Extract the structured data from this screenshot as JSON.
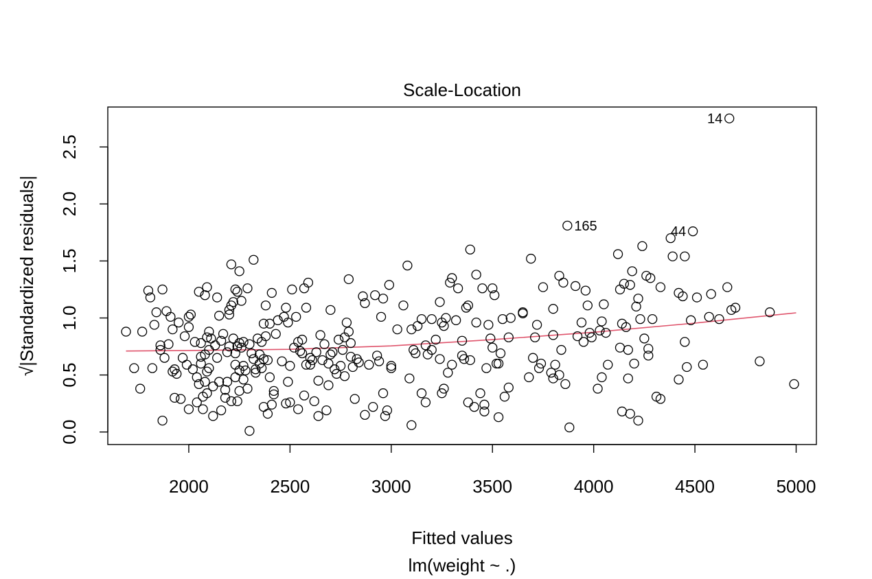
{
  "chart_data": {
    "type": "scatter",
    "title": "Scale-Location",
    "xlabel": "Fitted values",
    "subtitle": "lm(weight ~ .)",
    "ylabel": "√|Standardized residuals|",
    "xlim": [
      1600,
      5100
    ],
    "ylim": [
      -0.11,
      2.85
    ],
    "xticks": [
      2000,
      2500,
      3000,
      3500,
      4000,
      4500,
      5000
    ],
    "yticks": [
      0.0,
      0.5,
      1.0,
      1.5,
      2.0,
      2.5
    ],
    "ytick_labels": [
      "0.0",
      "0.5",
      "1.0",
      "1.5",
      "2.0",
      "2.5"
    ],
    "grid": false,
    "point_color": "#000000",
    "smooth_color": "#DF536B",
    "labeled_points": [
      {
        "label": "14",
        "x": 4670,
        "y": 2.75
      },
      {
        "label": "165",
        "x": 3870,
        "y": 1.81
      },
      {
        "label": "44",
        "x": 4490,
        "y": 1.76
      }
    ],
    "smooth": {
      "x": [
        1690,
        2000,
        2500,
        3000,
        3500,
        4000,
        4500,
        5000
      ],
      "y": [
        0.71,
        0.715,
        0.725,
        0.755,
        0.81,
        0.875,
        0.955,
        1.045
      ]
    },
    "points": [
      [
        1690,
        0.88
      ],
      [
        1730,
        0.56
      ],
      [
        1760,
        0.38
      ],
      [
        1770,
        0.88
      ],
      [
        1800,
        1.24
      ],
      [
        1810,
        1.18
      ],
      [
        1820,
        0.56
      ],
      [
        1830,
        0.94
      ],
      [
        1840,
        1.05
      ],
      [
        1860,
        0.72
      ],
      [
        1860,
        0.76
      ],
      [
        1870,
        0.1
      ],
      [
        1870,
        1.25
      ],
      [
        1880,
        0.65
      ],
      [
        1890,
        1.06
      ],
      [
        1900,
        0.77
      ],
      [
        1910,
        1.01
      ],
      [
        1920,
        0.9
      ],
      [
        1920,
        0.53
      ],
      [
        1930,
        0.55
      ],
      [
        1930,
        0.3
      ],
      [
        1940,
        0.51
      ],
      [
        1950,
        0.96
      ],
      [
        1960,
        0.29
      ],
      [
        1970,
        0.65
      ],
      [
        1980,
        0.84
      ],
      [
        1990,
        0.59
      ],
      [
        2000,
        0.2
      ],
      [
        2000,
        0.92
      ],
      [
        2000,
        1.01
      ],
      [
        2010,
        1.03
      ],
      [
        2020,
        0.55
      ],
      [
        2030,
        0.79
      ],
      [
        2040,
        0.26
      ],
      [
        2040,
        0.48
      ],
      [
        2050,
        0.42
      ],
      [
        2050,
        1.23
      ],
      [
        2060,
        0.6
      ],
      [
        2060,
        0.78
      ],
      [
        2060,
        0.66
      ],
      [
        2070,
        0.2
      ],
      [
        2070,
        0.31
      ],
      [
        2080,
        0.44
      ],
      [
        2080,
        1.2
      ],
      [
        2080,
        0.68
      ],
      [
        2090,
        0.34
      ],
      [
        2090,
        1.27
      ],
      [
        2090,
        0.53
      ],
      [
        2090,
        0.83
      ],
      [
        2100,
        0.88
      ],
      [
        2100,
        0.56
      ],
      [
        2100,
        0.72
      ],
      [
        2110,
        0.82
      ],
      [
        2120,
        0.14
      ],
      [
        2120,
        0.4
      ],
      [
        2130,
        0.76
      ],
      [
        2140,
        1.18
      ],
      [
        2140,
        0.65
      ],
      [
        2150,
        0.44
      ],
      [
        2150,
        1.02
      ],
      [
        2160,
        0.19
      ],
      [
        2160,
        0.8
      ],
      [
        2170,
        0.86
      ],
      [
        2180,
        0.3
      ],
      [
        2180,
        0.37
      ],
      [
        2190,
        0.7
      ],
      [
        2190,
        0.44
      ],
      [
        2200,
        0.75
      ],
      [
        2200,
        1.03
      ],
      [
        2200,
        1.07
      ],
      [
        2210,
        0.27
      ],
      [
        2210,
        1.11
      ],
      [
        2210,
        1.47
      ],
      [
        2220,
        1.14
      ],
      [
        2220,
        0.82
      ],
      [
        2230,
        0.48
      ],
      [
        2230,
        0.59
      ],
      [
        2230,
        0.69
      ],
      [
        2230,
        1.25
      ],
      [
        2240,
        0.27
      ],
      [
        2240,
        1.23
      ],
      [
        2240,
        0.75
      ],
      [
        2250,
        1.41
      ],
      [
        2250,
        0.78
      ],
      [
        2250,
        0.36
      ],
      [
        2250,
        0.54
      ],
      [
        2260,
        1.15
      ],
      [
        2260,
        0.74
      ],
      [
        2270,
        0.58
      ],
      [
        2270,
        0.46
      ],
      [
        2270,
        0.79
      ],
      [
        2280,
        0.54
      ],
      [
        2290,
        1.26
      ],
      [
        2290,
        0.38
      ],
      [
        2300,
        0.01
      ],
      [
        2300,
        0.77
      ],
      [
        2310,
        0.69
      ],
      [
        2320,
        1.51
      ],
      [
        2320,
        0.64
      ],
      [
        2330,
        0.52
      ],
      [
        2330,
        0.55
      ],
      [
        2340,
        0.82
      ],
      [
        2350,
        0.68
      ],
      [
        2350,
        0.6
      ],
      [
        2360,
        0.56
      ],
      [
        2360,
        0.79
      ],
      [
        2370,
        0.22
      ],
      [
        2370,
        0.95
      ],
      [
        2370,
        0.64
      ],
      [
        2380,
        1.11
      ],
      [
        2380,
        0.84
      ],
      [
        2390,
        0.16
      ],
      [
        2390,
        0.63
      ],
      [
        2400,
        0.95
      ],
      [
        2400,
        0.48
      ],
      [
        2410,
        1.22
      ],
      [
        2410,
        0.24
      ],
      [
        2420,
        0.36
      ],
      [
        2420,
        0.33
      ],
      [
        2430,
        0.86
      ],
      [
        2440,
        0.98
      ],
      [
        2460,
        0.62
      ],
      [
        2470,
        1.01
      ],
      [
        2480,
        0.25
      ],
      [
        2480,
        1.09
      ],
      [
        2490,
        0.96
      ],
      [
        2490,
        0.44
      ],
      [
        2500,
        0.58
      ],
      [
        2500,
        0.26
      ],
      [
        2510,
        1.25
      ],
      [
        2520,
        0.74
      ],
      [
        2530,
        1.01
      ],
      [
        2540,
        0.79
      ],
      [
        2540,
        0.2
      ],
      [
        2550,
        0.71
      ],
      [
        2560,
        0.69
      ],
      [
        2560,
        0.81
      ],
      [
        2570,
        1.26
      ],
      [
        2570,
        0.32
      ],
      [
        2580,
        1.09
      ],
      [
        2580,
        0.59
      ],
      [
        2590,
        1.31
      ],
      [
        2600,
        0.65
      ],
      [
        2600,
        0.59
      ],
      [
        2610,
        0.63
      ],
      [
        2620,
        0.27
      ],
      [
        2630,
        0.7
      ],
      [
        2640,
        0.45
      ],
      [
        2640,
        0.14
      ],
      [
        2650,
        0.85
      ],
      [
        2660,
        0.63
      ],
      [
        2670,
        0.77
      ],
      [
        2680,
        0.19
      ],
      [
        2690,
        0.6
      ],
      [
        2690,
        0.41
      ],
      [
        2700,
        0.68
      ],
      [
        2700,
        1.07
      ],
      [
        2710,
        0.7
      ],
      [
        2720,
        0.55
      ],
      [
        2730,
        0.51
      ],
      [
        2740,
        0.81
      ],
      [
        2750,
        0.58
      ],
      [
        2760,
        0.72
      ],
      [
        2770,
        0.49
      ],
      [
        2770,
        0.83
      ],
      [
        2780,
        0.96
      ],
      [
        2790,
        0.88
      ],
      [
        2790,
        1.34
      ],
      [
        2800,
        0.78
      ],
      [
        2800,
        0.66
      ],
      [
        2810,
        0.57
      ],
      [
        2820,
        0.29
      ],
      [
        2830,
        0.64
      ],
      [
        2840,
        0.61
      ],
      [
        2860,
        1.19
      ],
      [
        2870,
        0.15
      ],
      [
        2870,
        1.13
      ],
      [
        2890,
        0.59
      ],
      [
        2910,
        0.22
      ],
      [
        2920,
        1.2
      ],
      [
        2930,
        0.67
      ],
      [
        2940,
        0.62
      ],
      [
        2950,
        1.01
      ],
      [
        2960,
        0.34
      ],
      [
        2960,
        1.17
      ],
      [
        2970,
        0.14
      ],
      [
        2980,
        0.19
      ],
      [
        2990,
        1.29
      ],
      [
        3000,
        0.58
      ],
      [
        3000,
        0.56
      ],
      [
        3030,
        0.9
      ],
      [
        3060,
        1.11
      ],
      [
        3080,
        1.46
      ],
      [
        3090,
        0.47
      ],
      [
        3100,
        0.06
      ],
      [
        3100,
        0.9
      ],
      [
        3110,
        0.72
      ],
      [
        3120,
        0.69
      ],
      [
        3130,
        0.93
      ],
      [
        3150,
        0.99
      ],
      [
        3150,
        0.34
      ],
      [
        3170,
        0.26
      ],
      [
        3170,
        0.76
      ],
      [
        3180,
        0.68
      ],
      [
        3200,
        0.99
      ],
      [
        3200,
        0.72
      ],
      [
        3220,
        0.81
      ],
      [
        3240,
        0.64
      ],
      [
        3240,
        1.14
      ],
      [
        3250,
        0.34
      ],
      [
        3250,
        0.96
      ],
      [
        3260,
        0.93
      ],
      [
        3260,
        0.38
      ],
      [
        3270,
        1.0
      ],
      [
        3280,
        0.52
      ],
      [
        3290,
        1.31
      ],
      [
        3300,
        1.35
      ],
      [
        3300,
        0.59
      ],
      [
        3320,
        0.98
      ],
      [
        3330,
        1.26
      ],
      [
        3350,
        0.8
      ],
      [
        3350,
        0.67
      ],
      [
        3360,
        0.64
      ],
      [
        3370,
        1.09
      ],
      [
        3380,
        1.11
      ],
      [
        3380,
        0.26
      ],
      [
        3390,
        0.63
      ],
      [
        3390,
        1.6
      ],
      [
        3410,
        0.22
      ],
      [
        3420,
        1.38
      ],
      [
        3420,
        0.96
      ],
      [
        3440,
        0.34
      ],
      [
        3450,
        1.26
      ],
      [
        3460,
        0.24
      ],
      [
        3460,
        0.18
      ],
      [
        3470,
        0.56
      ],
      [
        3480,
        0.94
      ],
      [
        3490,
        0.82
      ],
      [
        3500,
        0.74
      ],
      [
        3500,
        1.26
      ],
      [
        3510,
        1.2
      ],
      [
        3520,
        0.6
      ],
      [
        3530,
        0.13
      ],
      [
        3530,
        0.6
      ],
      [
        3540,
        0.69
      ],
      [
        3550,
        0.99
      ],
      [
        3560,
        0.31
      ],
      [
        3580,
        0.83
      ],
      [
        3580,
        0.39
      ],
      [
        3590,
        1.0
      ],
      [
        3650,
        1.04
      ],
      [
        3650,
        1.05
      ],
      [
        3680,
        0.48
      ],
      [
        3690,
        1.52
      ],
      [
        3700,
        0.65
      ],
      [
        3710,
        0.83
      ],
      [
        3720,
        0.94
      ],
      [
        3730,
        0.56
      ],
      [
        3740,
        0.6
      ],
      [
        3750,
        1.27
      ],
      [
        3790,
        0.52
      ],
      [
        3800,
        0.85
      ],
      [
        3800,
        1.08
      ],
      [
        3800,
        0.47
      ],
      [
        3810,
        0.59
      ],
      [
        3830,
        0.5
      ],
      [
        3830,
        1.37
      ],
      [
        3840,
        0.72
      ],
      [
        3850,
        1.31
      ],
      [
        3860,
        0.42
      ],
      [
        3870,
        1.81
      ],
      [
        3880,
        0.04
      ],
      [
        3910,
        1.28
      ],
      [
        3920,
        0.84
      ],
      [
        3940,
        0.96
      ],
      [
        3950,
        0.79
      ],
      [
        3960,
        1.24
      ],
      [
        3970,
        1.11
      ],
      [
        3980,
        0.87
      ],
      [
        3990,
        0.83
      ],
      [
        4020,
        0.38
      ],
      [
        4030,
        0.89
      ],
      [
        4040,
        0.97
      ],
      [
        4040,
        0.48
      ],
      [
        4050,
        1.12
      ],
      [
        4060,
        0.87
      ],
      [
        4070,
        0.59
      ],
      [
        4120,
        1.56
      ],
      [
        4130,
        0.74
      ],
      [
        4130,
        1.25
      ],
      [
        4140,
        0.95
      ],
      [
        4140,
        0.18
      ],
      [
        4150,
        1.3
      ],
      [
        4160,
        0.92
      ],
      [
        4170,
        0.72
      ],
      [
        4170,
        0.47
      ],
      [
        4180,
        0.16
      ],
      [
        4180,
        1.29
      ],
      [
        4190,
        1.41
      ],
      [
        4200,
        0.6
      ],
      [
        4210,
        1.1
      ],
      [
        4220,
        1.17
      ],
      [
        4220,
        0.1
      ],
      [
        4230,
        0.99
      ],
      [
        4240,
        1.63
      ],
      [
        4250,
        0.82
      ],
      [
        4260,
        1.37
      ],
      [
        4270,
        0.67
      ],
      [
        4270,
        0.73
      ],
      [
        4280,
        1.35
      ],
      [
        4290,
        0.99
      ],
      [
        4310,
        0.31
      ],
      [
        4330,
        1.27
      ],
      [
        4330,
        0.29
      ],
      [
        4380,
        1.7
      ],
      [
        4390,
        1.54
      ],
      [
        4420,
        1.22
      ],
      [
        4420,
        0.46
      ],
      [
        4440,
        1.19
      ],
      [
        4450,
        1.54
      ],
      [
        4450,
        0.79
      ],
      [
        4460,
        0.57
      ],
      [
        4480,
        0.98
      ],
      [
        4490,
        1.76
      ],
      [
        4510,
        1.18
      ],
      [
        4540,
        0.59
      ],
      [
        4570,
        1.01
      ],
      [
        4580,
        1.21
      ],
      [
        4620,
        0.99
      ],
      [
        4660,
        1.27
      ],
      [
        4670,
        2.75
      ],
      [
        4680,
        1.07
      ],
      [
        4700,
        1.09
      ],
      [
        4820,
        0.62
      ],
      [
        4870,
        1.05
      ],
      [
        4990,
        0.42
      ]
    ]
  }
}
